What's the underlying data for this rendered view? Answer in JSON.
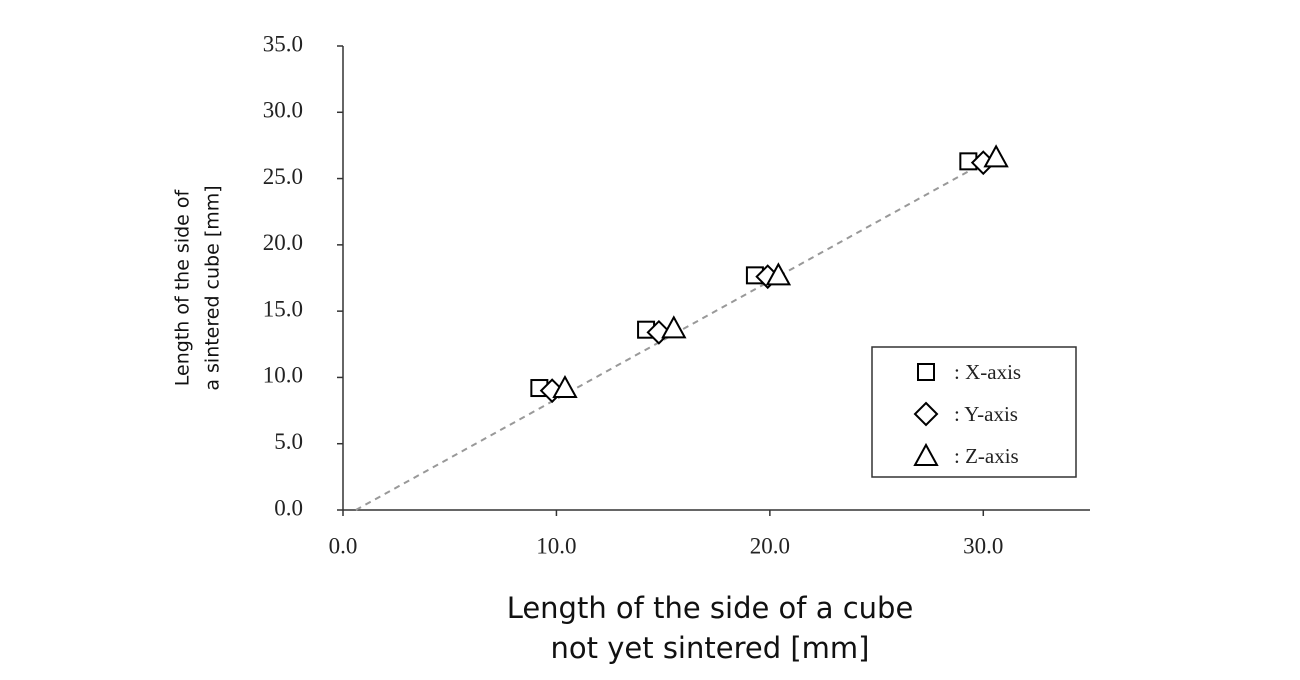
{
  "chart_data": {
    "type": "scatter",
    "xlabel": [
      "Length of the side of a cube",
      "not yet sintered [mm]"
    ],
    "ylabel": [
      "Length of the side of",
      "a sintered cube [mm]"
    ],
    "xlim": [
      0,
      35
    ],
    "ylim": [
      0,
      35
    ],
    "xticks": [
      {
        "value": 0,
        "label": "0.0"
      },
      {
        "value": 10,
        "label": "10.0"
      },
      {
        "value": 20,
        "label": "20.0"
      },
      {
        "value": 30,
        "label": "30.0"
      }
    ],
    "yticks": [
      {
        "value": 0,
        "label": "0.0"
      },
      {
        "value": 5,
        "label": "5.0"
      },
      {
        "value": 10,
        "label": "10.0"
      },
      {
        "value": 15,
        "label": "15.0"
      },
      {
        "value": 20,
        "label": "20.0"
      },
      {
        "value": 25,
        "label": "25.0"
      },
      {
        "value": 30,
        "label": "30.0"
      },
      {
        "value": 35,
        "label": "35.0"
      }
    ],
    "series": [
      {
        "name": ": X-axis",
        "marker": "square",
        "color": "#000000",
        "x": [
          9.2,
          14.2,
          19.3,
          29.3
        ],
        "values": [
          9.2,
          13.6,
          17.7,
          26.3
        ]
      },
      {
        "name": ": Y-axis",
        "marker": "diamond",
        "color": "#000000",
        "x": [
          9.8,
          14.8,
          19.9,
          30.0
        ],
        "values": [
          9.0,
          13.4,
          17.6,
          26.2
        ]
      },
      {
        "name": ": Z-axis",
        "marker": "triangle",
        "color": "#000000",
        "x": [
          10.4,
          15.5,
          20.4,
          30.6
        ],
        "values": [
          9.2,
          13.7,
          17.7,
          26.6
        ]
      }
    ],
    "trend_line": {
      "color": "#999999",
      "dashed": true,
      "x": [
        0.6,
        30.6
      ],
      "values": [
        0,
        26.7
      ]
    },
    "legend": "lower right",
    "grid": false
  }
}
